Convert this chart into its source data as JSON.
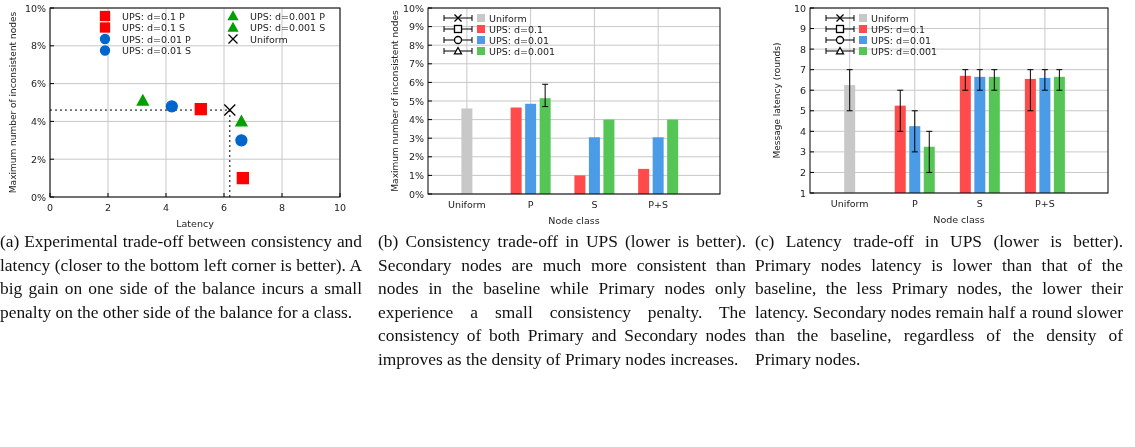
{
  "chart_data": [
    {
      "type": "scatter",
      "xlabel": "Latency",
      "ylabel": "Maximum number of inconsistent nodes",
      "xlim": [
        0,
        10
      ],
      "xticks": [
        0,
        2,
        4,
        6,
        8,
        10
      ],
      "ylim": [
        0,
        10
      ],
      "yticks": [
        {
          "value": 0,
          "label": "0%"
        },
        {
          "value": 2,
          "label": "2%"
        },
        {
          "value": 4,
          "label": "4%"
        },
        {
          "value": 6,
          "label": "6%"
        },
        {
          "value": 8,
          "label": "8%"
        },
        {
          "value": 10,
          "label": "10%"
        }
      ],
      "grid": true,
      "legend": "top",
      "series": [
        {
          "name": "UPS: d=0.1 P",
          "color": "#ff0000",
          "marker": "square",
          "x": [
            5.2
          ],
          "values": [
            4.65
          ]
        },
        {
          "name": "UPS: d=0.1 S",
          "color": "#ff0000",
          "marker": "square",
          "x": [
            6.65
          ],
          "values": [
            1.0
          ]
        },
        {
          "name": "UPS: d=0.01 P",
          "color": "#0066cc",
          "marker": "circle",
          "x": [
            4.2
          ],
          "values": [
            4.8
          ]
        },
        {
          "name": "UPS: d=0.01 S",
          "color": "#0066cc",
          "marker": "circle",
          "x": [
            6.6
          ],
          "values": [
            3.0
          ]
        },
        {
          "name": "UPS: d=0.001 P",
          "color": "#00a000",
          "marker": "triangle",
          "x": [
            3.2
          ],
          "values": [
            5.1
          ]
        },
        {
          "name": "UPS: d=0.001 S",
          "color": "#00a000",
          "marker": "triangle",
          "x": [
            6.6
          ],
          "values": [
            4.0
          ]
        },
        {
          "name": "Uniform",
          "color": "#000000",
          "marker": "cross",
          "x": [
            6.2
          ],
          "values": [
            4.6
          ]
        }
      ],
      "ref_lines": [
        {
          "axis": "y",
          "value": 4.6,
          "line_style": "dotted",
          "color": "#000000"
        },
        {
          "axis": "x",
          "value": 6.2,
          "line_style": "dotted",
          "color": "#000000"
        }
      ],
      "annotations": [
        "(a) Experimental trade-off between consistency and latency (closer to the bottom left corner is better). A big gain on one side of the balance incurs a small penalty on the other side of the balance for a class."
      ]
    },
    {
      "type": "bar",
      "xlabel": "Node class",
      "ylabel": "Maximum number of inconsistent nodes",
      "categories": [
        "Uniform",
        "P",
        "S",
        "P+S"
      ],
      "ylim": [
        0,
        10
      ],
      "yticks": [
        {
          "value": 0,
          "label": "0%"
        },
        {
          "value": 1,
          "label": "1%"
        },
        {
          "value": 2,
          "label": "2%"
        },
        {
          "value": 3,
          "label": "3%"
        },
        {
          "value": 4,
          "label": "4%"
        },
        {
          "value": 5,
          "label": "5%"
        },
        {
          "value": 6,
          "label": "6%"
        },
        {
          "value": 7,
          "label": "7%"
        },
        {
          "value": 8,
          "label": "8%"
        },
        {
          "value": 9,
          "label": "9%"
        },
        {
          "value": 10,
          "label": "10%"
        }
      ],
      "grid": true,
      "legend": "top left",
      "series": [
        {
          "name": "Uniform",
          "color": "#c8c8c8",
          "marker": "cross",
          "values": [
            4.6,
            null,
            null,
            null
          ]
        },
        {
          "name": "UPS: d=0.1",
          "color": "#ff4b4b",
          "marker": "square",
          "values": [
            null,
            4.65,
            1.0,
            1.35
          ]
        },
        {
          "name": "UPS: d=0.01",
          "color": "#4b9be6",
          "marker": "circle",
          "values": [
            null,
            4.85,
            3.05,
            3.05
          ]
        },
        {
          "name": "UPS: d=0.001",
          "color": "#55c655",
          "marker": "triangle",
          "values": [
            null,
            5.15,
            4.0,
            4.0
          ],
          "errors": [
            null,
            [
              4.7,
              5.9
            ],
            null,
            null
          ]
        }
      ],
      "annotations": [
        "(b) Consistency trade-off in UPS (lower is better). Secondary nodes are much more consistent than nodes in the baseline while Primary nodes only experience a small consistency penalty. The consistency of both Primary and Secondary nodes improves as the density of Primary nodes increases."
      ]
    },
    {
      "type": "bar",
      "xlabel": "Node class",
      "ylabel": "Message latency (rounds)",
      "categories": [
        "Uniform",
        "P",
        "S",
        "P+S"
      ],
      "ylim": [
        1,
        10
      ],
      "yticks": [
        1,
        2,
        3,
        4,
        5,
        6,
        7,
        8,
        9,
        10
      ],
      "grid": true,
      "legend": "top left",
      "series": [
        {
          "name": "Uniform",
          "color": "#c8c8c8",
          "marker": "cross",
          "values": [
            6.25,
            null,
            null,
            null
          ],
          "errors": [
            [
              5,
              7
            ],
            null,
            null,
            null
          ]
        },
        {
          "name": "UPS: d=0.1",
          "color": "#ff4b4b",
          "marker": "square",
          "values": [
            null,
            5.25,
            6.7,
            6.55
          ],
          "errors": [
            null,
            [
              4,
              6
            ],
            [
              6,
              7
            ],
            [
              5,
              7
            ]
          ]
        },
        {
          "name": "UPS: d=0.01",
          "color": "#4b9be6",
          "marker": "circle",
          "values": [
            null,
            4.25,
            6.65,
            6.6
          ],
          "errors": [
            null,
            [
              3,
              5
            ],
            [
              6,
              7
            ],
            [
              6,
              7
            ]
          ]
        },
        {
          "name": "UPS: d=0.001",
          "color": "#55c655",
          "marker": "triangle",
          "values": [
            null,
            3.25,
            6.65,
            6.65
          ],
          "errors": [
            null,
            [
              2,
              4
            ],
            [
              6,
              7
            ],
            [
              6,
              7
            ]
          ]
        }
      ],
      "annotations": [
        "(c) Latency trade-off in UPS (lower is better). Primary nodes latency is lower than that of the baseline, the less Primary nodes, the lower their latency. Secondary nodes remain half a round slower than the baseline, regardless of the density of Primary nodes."
      ]
    }
  ]
}
